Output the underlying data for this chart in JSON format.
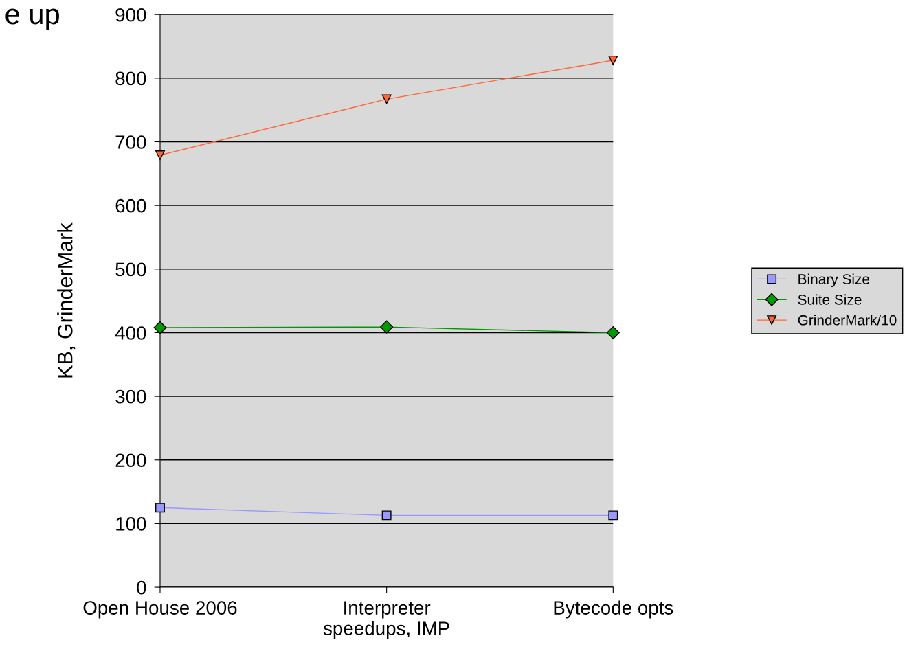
{
  "chart_data": {
    "type": "line",
    "annotations": [
      "e up"
    ],
    "ylabel": "KB, GrinderMark",
    "categories": [
      "Open House 2006",
      "Interpreter\nspeedups, IMP",
      "Bytecode opts"
    ],
    "series": [
      {
        "name": "Binary Size",
        "color": "#9999ff",
        "marker": "square",
        "values": [
          125,
          113,
          113
        ]
      },
      {
        "name": "Suite Size",
        "color": "#009900",
        "marker": "diamond",
        "values": [
          408,
          409,
          400
        ]
      },
      {
        "name": "GrinderMark/10",
        "color": "#ff6633",
        "marker": "triangle",
        "values": [
          679,
          767,
          828
        ]
      }
    ],
    "ylim": [
      0,
      900
    ],
    "yticks": [
      0,
      100,
      200,
      300,
      400,
      500,
      600,
      700,
      800,
      900
    ],
    "grid": "y",
    "legend": "right",
    "line_style": "solid"
  }
}
